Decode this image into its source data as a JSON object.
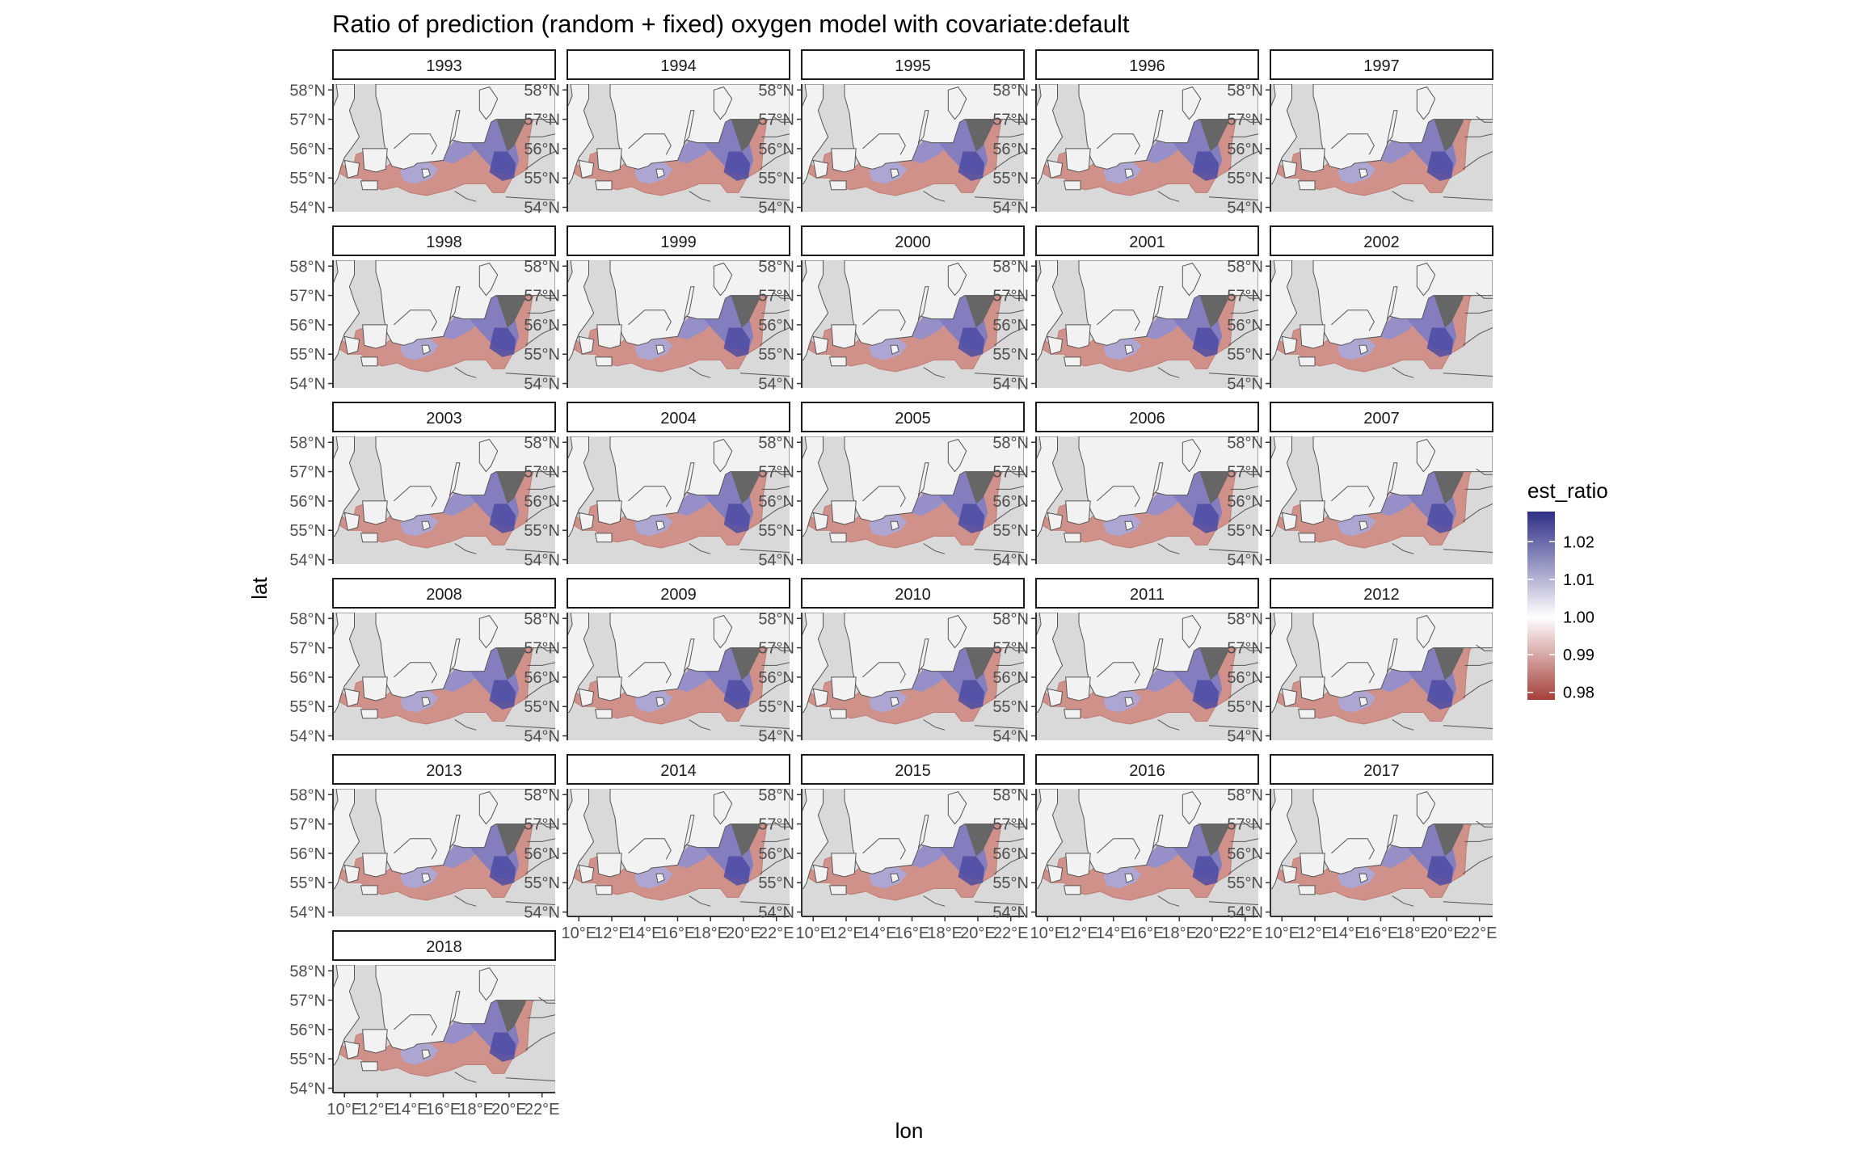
{
  "chart_data": {
    "type": "heatmap",
    "title": "Ratio of prediction (random + fixed) oxygen model with covariate:default",
    "xlabel": "lon",
    "ylabel": "lat",
    "facet_labels": [
      "1993",
      "1994",
      "1995",
      "1996",
      "1997",
      "1998",
      "1999",
      "2000",
      "2001",
      "2002",
      "2003",
      "2004",
      "2005",
      "2006",
      "2007",
      "2008",
      "2009",
      "2010",
      "2011",
      "2012",
      "2013",
      "2014",
      "2015",
      "2016",
      "2017",
      "2018"
    ],
    "x_ticks": [
      "10°E",
      "12°E",
      "14°E",
      "16°E",
      "18°E",
      "20°E",
      "22°E"
    ],
    "y_ticks": [
      "54°N",
      "55°N",
      "56°N",
      "57°N",
      "58°N"
    ],
    "xlim": [
      9.3,
      22.8
    ],
    "ylim": [
      53.85,
      58.2
    ],
    "legend": {
      "title": "est_ratio",
      "breaks": [
        0.98,
        0.99,
        1.0,
        1.01,
        1.02
      ],
      "labels": [
        "0.98",
        "0.99",
        "1.00",
        "1.01",
        "1.02"
      ],
      "limits": [
        0.978,
        1.028
      ],
      "low_color": "#a5403a",
      "mid_color": "#ffffff",
      "high_color": "#2e2e87",
      "position": "right"
    },
    "land_color": "#f2f2f2",
    "sea_background_color": "#d9d9d9",
    "unmodelled_color": "#666666"
  }
}
